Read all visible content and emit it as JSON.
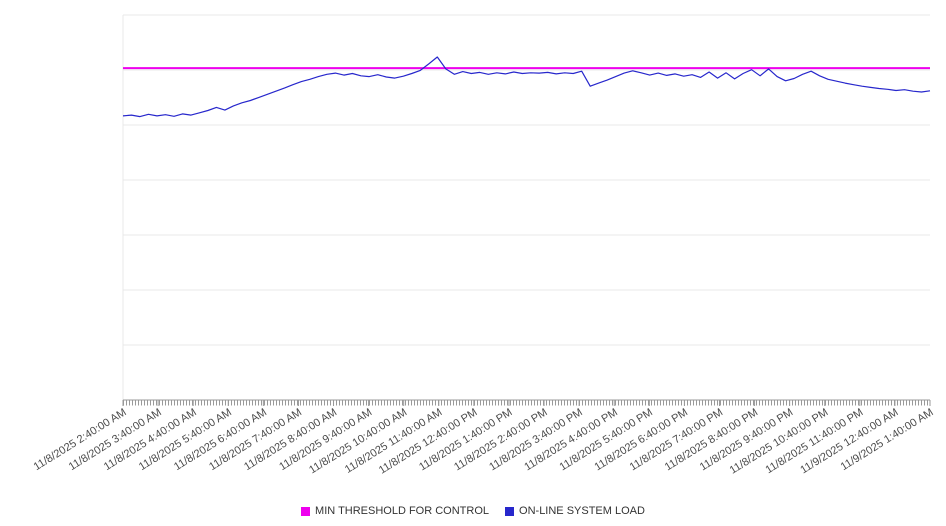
{
  "chart_data": {
    "type": "line",
    "title": "",
    "xlabel": "",
    "ylabel": "",
    "ylim": [
      0,
      100
    ],
    "grid": "horizontal",
    "legend_position": "bottom-center",
    "colors": {
      "grid": "#e8e8e8",
      "axis": "#999999",
      "label": "#4a4a4a",
      "background": "#ffffff"
    },
    "x_labels": [
      "11/8/2025 2:40:00 AM",
      "11/8/2025 3:40:00 AM",
      "11/8/2025 4:40:00 AM",
      "11/8/2025 5:40:00 AM",
      "11/8/2025 6:40:00 AM",
      "11/8/2025 7:40:00 AM",
      "11/8/2025 8:40:00 AM",
      "11/8/2025 9:40:00 AM",
      "11/8/2025 10:40:00 AM",
      "11/8/2025 11:40:00 AM",
      "11/8/2025 12:40:00 PM",
      "11/8/2025 1:40:00 PM",
      "11/8/2025 2:40:00 PM",
      "11/8/2025 3:40:00 PM",
      "11/8/2025 4:40:00 PM",
      "11/8/2025 5:40:00 PM",
      "11/8/2025 6:40:00 PM",
      "11/8/2025 7:40:00 PM",
      "11/8/2025 8:40:00 PM",
      "11/8/2025 9:40:00 PM",
      "11/8/2025 10:40:00 PM",
      "11/8/2025 11:40:00 PM",
      "11/9/2025 12:40:00 AM",
      "11/9/2025 1:40:00 AM"
    ],
    "series": [
      {
        "name": "MIN THRESHOLD FOR CONTROL",
        "type": "threshold",
        "color": "#ee00ee",
        "value": 86.2
      },
      {
        "name": "ON-LINE SYSTEM LOAD",
        "type": "line",
        "color": "#2727cc",
        "values": [
          73.8,
          74.0,
          73.6,
          74.2,
          73.8,
          74.1,
          73.7,
          74.3,
          74.0,
          74.6,
          75.2,
          76.0,
          75.3,
          76.4,
          77.2,
          77.8,
          78.6,
          79.4,
          80.2,
          81.0,
          81.9,
          82.7,
          83.3,
          84.0,
          84.6,
          84.9,
          84.4,
          84.8,
          84.2,
          84.0,
          84.5,
          83.9,
          83.6,
          84.1,
          84.8,
          85.6,
          87.3,
          89.1,
          86.0,
          84.6,
          85.3,
          84.8,
          85.1,
          84.6,
          85.0,
          84.7,
          85.2,
          84.8,
          85.0,
          84.9,
          85.1,
          84.7,
          85.0,
          84.8,
          85.4,
          81.5,
          82.3,
          83.1,
          84.0,
          84.9,
          85.5,
          85.0,
          84.4,
          84.9,
          84.3,
          84.7,
          84.1,
          84.5,
          83.8,
          85.2,
          83.6,
          85.0,
          83.4,
          84.8,
          85.8,
          84.2,
          86.0,
          84.0,
          82.9,
          83.5,
          84.6,
          85.4,
          84.2,
          83.3,
          82.8,
          82.3,
          81.9,
          81.5,
          81.2,
          80.9,
          80.7,
          80.4,
          80.6,
          80.2,
          80.0,
          80.3
        ]
      }
    ]
  }
}
